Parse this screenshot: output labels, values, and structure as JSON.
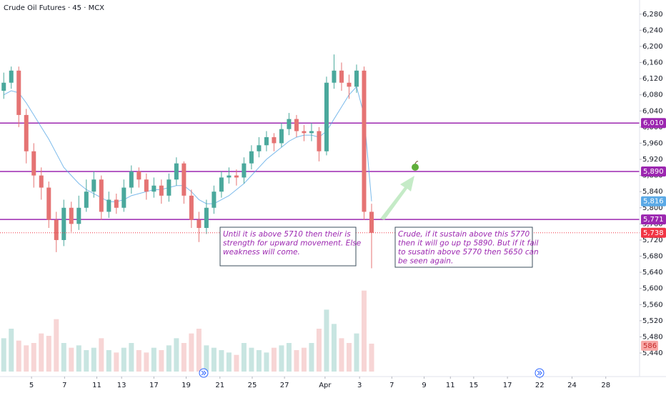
{
  "chart_data": {
    "type": "candlestick",
    "title": "Crude Oil Futures · 45 · MCX",
    "xlim": [
      0,
      85.2
    ],
    "xticks": [
      {
        "value": 4.2,
        "label": "5"
      },
      {
        "value": 8.6,
        "label": "7"
      },
      {
        "value": 12.9,
        "label": "11"
      },
      {
        "value": 16.2,
        "label": "13"
      },
      {
        "value": 20.5,
        "label": "17"
      },
      {
        "value": 24.8,
        "label": "19"
      },
      {
        "value": 29.3,
        "label": "21"
      },
      {
        "value": 33.6,
        "label": "25"
      },
      {
        "value": 37.9,
        "label": "27"
      },
      {
        "value": 43.3,
        "label": "Apr"
      },
      {
        "value": 47.9,
        "label": "3"
      },
      {
        "value": 52.2,
        "label": "7"
      },
      {
        "value": 56.5,
        "label": "9"
      },
      {
        "value": 60,
        "label": "11"
      },
      {
        "value": 63.1,
        "label": "15"
      },
      {
        "value": 67.6,
        "label": "17"
      },
      {
        "value": 71.9,
        "label": "22"
      },
      {
        "value": 76.2,
        "label": "24"
      },
      {
        "value": 80.7,
        "label": "28"
      }
    ],
    "ylim": [
      5394,
      6315
    ],
    "yticks": [
      {
        "value": 5440,
        "label": "5,440"
      },
      {
        "value": 5480,
        "label": "5,480"
      },
      {
        "value": 5520,
        "label": "5,520"
      },
      {
        "value": 5560,
        "label": "5,560"
      },
      {
        "value": 5600,
        "label": "5,600"
      },
      {
        "value": 5640,
        "label": "5,640"
      },
      {
        "value": 5680,
        "label": "5,680"
      },
      {
        "value": 5720,
        "label": "5,720"
      },
      {
        "value": 5760,
        "label": "5,760"
      },
      {
        "value": 5800,
        "label": "5,800"
      },
      {
        "value": 5840,
        "label": "5,840"
      },
      {
        "value": 5880,
        "label": "5,880"
      },
      {
        "value": 5920,
        "label": "5,920"
      },
      {
        "value": 5960,
        "label": "5,960"
      },
      {
        "value": 6000,
        "label": "6,000"
      },
      {
        "value": 6040,
        "label": "6,040"
      },
      {
        "value": 6080,
        "label": "6,080"
      },
      {
        "value": 6120,
        "label": "6,120"
      },
      {
        "value": 6160,
        "label": "6,160"
      },
      {
        "value": 6200,
        "label": "6,200"
      },
      {
        "value": 6240,
        "label": "6,240"
      },
      {
        "value": 6280,
        "label": "6,280"
      }
    ],
    "up_color": "#4aa89c",
    "down_color": "#e57373",
    "open": [
      6090,
      6110,
      6140,
      6030,
      5940,
      5880,
      5850,
      5770,
      5720,
      5800,
      5760,
      5800,
      5840,
      5870,
      5790,
      5820,
      5800,
      5850,
      5890,
      5870,
      5840,
      5855,
      5830,
      5870,
      5910,
      5830,
      5770,
      5750,
      5800,
      5840,
      5875,
      5880,
      5875,
      5910,
      5940,
      5955,
      5975,
      5960,
      5995,
      6020,
      5990,
      5985,
      5990,
      5940,
      6110,
      6140,
      6110,
      6100,
      6140,
      5790
    ],
    "high": [
      6135,
      6150,
      6150,
      6045,
      5960,
      5900,
      5865,
      5790,
      5820,
      5815,
      5830,
      5870,
      5890,
      5880,
      5840,
      5835,
      5870,
      5905,
      5900,
      5885,
      5875,
      5870,
      5885,
      5925,
      5915,
      5845,
      5790,
      5820,
      5855,
      5890,
      5900,
      5895,
      5925,
      5955,
      5975,
      5990,
      5985,
      6010,
      6035,
      6030,
      6005,
      6010,
      6000,
      6125,
      6180,
      6160,
      6130,
      6155,
      6150,
      5810
    ],
    "low": [
      6070,
      6095,
      6000,
      5910,
      5850,
      5820,
      5750,
      5690,
      5705,
      5740,
      5745,
      5790,
      5825,
      5770,
      5775,
      5785,
      5790,
      5835,
      5850,
      5820,
      5825,
      5810,
      5815,
      5855,
      5810,
      5750,
      5715,
      5735,
      5785,
      5825,
      5860,
      5855,
      5860,
      5895,
      5925,
      5940,
      5940,
      5950,
      5980,
      5975,
      5965,
      5965,
      5915,
      5930,
      6095,
      6090,
      6070,
      6085,
      5770,
      5650
    ],
    "close": [
      6110,
      6140,
      6030,
      5940,
      5880,
      5850,
      5770,
      5720,
      5800,
      5760,
      5800,
      5840,
      5870,
      5790,
      5820,
      5800,
      5850,
      5890,
      5870,
      5840,
      5855,
      5830,
      5870,
      5910,
      5830,
      5770,
      5750,
      5800,
      5840,
      5875,
      5880,
      5875,
      5910,
      5940,
      5955,
      5975,
      5960,
      5995,
      6020,
      5990,
      5985,
      5990,
      5940,
      6110,
      6140,
      6110,
      6100,
      6140,
      5790,
      5738
    ],
    "close_color": "#f23645",
    "value_labels": [
      null,
      null,
      null,
      null,
      null,
      null,
      null,
      null,
      null,
      null,
      null,
      null,
      null,
      null,
      null,
      null,
      null,
      null,
      null,
      null,
      null,
      null,
      null,
      null,
      null,
      null,
      null,
      null,
      null,
      null,
      null,
      null,
      null,
      null,
      null,
      null,
      null,
      null,
      null,
      null,
      null,
      null,
      null,
      null,
      null,
      null,
      null,
      null,
      null,
      "5,738"
    ],
    "ma": {
      "color": "#5aa9e6",
      "values": [
        6080,
        6090,
        6085,
        6060,
        6030,
        6000,
        5970,
        5935,
        5900,
        5880,
        5860,
        5845,
        5835,
        5825,
        5815,
        5815,
        5820,
        5830,
        5835,
        5840,
        5845,
        5845,
        5850,
        5855,
        5855,
        5840,
        5820,
        5810,
        5810,
        5820,
        5830,
        5845,
        5860,
        5880,
        5900,
        5920,
        5935,
        5950,
        5965,
        5975,
        5980,
        5980,
        5975,
        5990,
        6020,
        6050,
        6080,
        6100,
        6030,
        5816
      ],
      "value_labels": [
        null,
        null,
        null,
        null,
        null,
        null,
        null,
        null,
        null,
        null,
        null,
        null,
        null,
        null,
        null,
        null,
        null,
        null,
        null,
        null,
        null,
        null,
        null,
        null,
        null,
        null,
        null,
        null,
        null,
        null,
        null,
        null,
        null,
        null,
        null,
        null,
        null,
        null,
        null,
        null,
        null,
        null,
        null,
        null,
        null,
        null,
        null,
        null,
        null,
        "5,816"
      ]
    },
    "volume": {
      "axis": "y2",
      "values": [
        700,
        900,
        650,
        550,
        600,
        800,
        750,
        1100,
        600,
        500,
        550,
        450,
        500,
        700,
        450,
        400,
        500,
        600,
        450,
        400,
        500,
        450,
        550,
        700,
        600,
        800,
        900,
        550,
        500,
        450,
        400,
        350,
        600,
        500,
        450,
        400,
        500,
        550,
        600,
        450,
        500,
        600,
        900,
        1300,
        1000,
        700,
        600,
        800,
        1700,
        586
      ]
    },
    "y2lim": [
      0,
      1800
    ],
    "levels": [
      {
        "value": 6010,
        "label": "6,010",
        "color": "#9c27b0"
      },
      {
        "value": 5890,
        "label": "5,890",
        "color": "#9c27b0"
      },
      {
        "value": 5771,
        "label": "5,771",
        "color": "#9c27b0"
      }
    ],
    "annotations": [
      {
        "lines": [
          "Until it is above 5710 then their is",
          "strength for upward movement. Else",
          "weakness will come."
        ]
      },
      {
        "lines": [
          "Crude, if it sustain above this 5770",
          "then it will go up tp 5890. But if it fail",
          "to susatin above 5770 then 5650 can",
          "be seen again."
        ]
      }
    ]
  }
}
